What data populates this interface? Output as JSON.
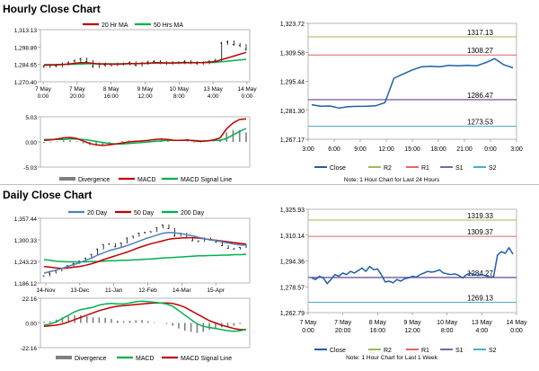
{
  "sections": {
    "hourly_title": "Hourly Close Chart",
    "daily_title": "Daily Close Chart"
  },
  "colors": {
    "ma_short": "#c00000",
    "ma_long": "#00b050",
    "close": "#1f5fa8",
    "close_dark": "#17375e",
    "r2": "#9bbb59",
    "r1": "#e06666",
    "s1": "#8064a2",
    "s2": "#4bacc6",
    "divergence": "#7f7f7f",
    "candle": "#000000",
    "ma20": "#4f81bd"
  },
  "chart_data": [
    {
      "id": "hourly_price",
      "type": "line",
      "title": "Hourly Close Chart",
      "legend": [
        "20 Hr MA",
        "50 Hrs MA"
      ],
      "y_ticks": [
        "1,313.13",
        "1,298.89",
        "1,284.65",
        "1,270.40"
      ],
      "ylim": [
        1270.4,
        1313.13
      ],
      "x_ticks": [
        [
          "7 May",
          "0:00"
        ],
        [
          "7 May",
          "20:00"
        ],
        [
          "8 May",
          "16:00"
        ],
        [
          "9 May",
          "12:00"
        ],
        [
          "10 May",
          "8:00"
        ],
        [
          "13 May",
          "4:00"
        ],
        [
          "14 May",
          "0:00"
        ]
      ],
      "series": [
        {
          "name": "Price",
          "values": [
            1283,
            1284,
            1283.5,
            1285,
            1286,
            1287.5,
            1289,
            1287,
            1283,
            1285,
            1284,
            1284.5,
            1285,
            1285,
            1286,
            1284,
            1285.5,
            1286.5,
            1287,
            1286,
            1285.5,
            1286,
            1286,
            1287,
            1286,
            1285.5,
            1286,
            1287,
            1288,
            1302,
            1303,
            1301,
            1300,
            1297
          ]
        },
        {
          "name": "20 Hr MA",
          "values": [
            1284,
            1284,
            1284.2,
            1284.5,
            1285,
            1285.5,
            1286,
            1286,
            1285.5,
            1285,
            1285,
            1284.8,
            1284.8,
            1285,
            1285.3,
            1285.2,
            1285.4,
            1285.6,
            1286,
            1286,
            1285.9,
            1285.9,
            1286,
            1286.2,
            1286.2,
            1286.1,
            1286.2,
            1286.5,
            1287,
            1288.5,
            1290,
            1291.5,
            1293,
            1294.5
          ]
        },
        {
          "name": "50 Hrs MA",
          "values": [
            1284.5,
            1284.5,
            1284.5,
            1284.6,
            1284.7,
            1284.8,
            1285,
            1285.1,
            1285.1,
            1285.1,
            1285.1,
            1285.1,
            1285.1,
            1285.2,
            1285.3,
            1285.3,
            1285.4,
            1285.5,
            1285.6,
            1285.6,
            1285.7,
            1285.7,
            1285.8,
            1285.9,
            1285.9,
            1286,
            1286,
            1286.1,
            1286.3,
            1286.8,
            1287.3,
            1287.8,
            1288.3,
            1288.8
          ]
        }
      ]
    },
    {
      "id": "hourly_macd",
      "type": "line",
      "y_ticks": [
        "5.03",
        "0.00",
        "-5.03"
      ],
      "ylim": [
        -5.03,
        5.03
      ],
      "legend": [
        "Divergence",
        "MACD",
        "MACD Signal Line"
      ],
      "series": [
        {
          "name": "MACD",
          "values": [
            0.3,
            0.4,
            0.6,
            0.8,
            0.9,
            0.7,
            0.2,
            -0.3,
            -0.6,
            -0.7,
            -0.6,
            -0.4,
            -0.2,
            0.0,
            0.1,
            0.2,
            0.3,
            0.5,
            0.6,
            0.5,
            0.3,
            0.3,
            0.4,
            0.2,
            0.1,
            0.2,
            0.4,
            0.8,
            2.6,
            3.8,
            4.5,
            4.6
          ]
        },
        {
          "name": "MACD Signal Line",
          "values": [
            0.5,
            0.5,
            0.5,
            0.5,
            0.6,
            0.6,
            0.5,
            0.3,
            0.1,
            -0.1,
            -0.3,
            -0.4,
            -0.4,
            -0.3,
            -0.2,
            -0.1,
            0.0,
            0.1,
            0.2,
            0.3,
            0.3,
            0.3,
            0.3,
            0.3,
            0.2,
            0.2,
            0.3,
            0.3,
            0.7,
            1.4,
            2.1,
            2.7
          ]
        },
        {
          "name": "Divergence",
          "values": [
            -0.2,
            -0.1,
            0.1,
            0.3,
            0.3,
            0.1,
            -0.3,
            -0.6,
            -0.7,
            -0.6,
            -0.3,
            0.0,
            0.2,
            0.3,
            0.3,
            0.3,
            0.3,
            0.4,
            0.4,
            0.2,
            0.0,
            0.0,
            0.1,
            -0.1,
            -0.1,
            0.0,
            0.1,
            0.5,
            1.9,
            2.4,
            2.4,
            1.9
          ]
        }
      ]
    },
    {
      "id": "hourly_close_24h",
      "type": "line",
      "y_ticks": [
        "1,323.72",
        "1,309.58",
        "1,295.44",
        "1,281.30",
        "1,267.17"
      ],
      "ylim": [
        1267.17,
        1323.72
      ],
      "x_ticks": [
        "3:00",
        "6:00",
        "9:00",
        "12:00",
        "15:00",
        "18:00",
        "21:00",
        "0:00",
        "3:00"
      ],
      "levels": [
        {
          "name": "R2",
          "value": 1317.13,
          "label": "1317.13"
        },
        {
          "name": "R1",
          "value": 1308.27,
          "label": "1308.27"
        },
        {
          "name": "S1",
          "value": 1286.47,
          "label": "1286.47"
        },
        {
          "name": "S2",
          "value": 1273.53,
          "label": "1273.53"
        }
      ],
      "series": [
        {
          "name": "Close",
          "values": [
            1284,
            1283.3,
            1283.4,
            1282.4,
            1283.1,
            1283.2,
            1283.3,
            1283.5,
            1285,
            1297,
            1299,
            1301,
            1302.5,
            1302.8,
            1302.5,
            1303.2,
            1303,
            1303.2,
            1303,
            1304.5,
            1306.5,
            1303.5,
            1302
          ]
        }
      ],
      "legend": [
        "Close",
        "R2",
        "R1",
        "S1",
        "S2"
      ],
      "note": "Note: 1 Hour Chart for Last 24 Hours"
    },
    {
      "id": "daily_price",
      "type": "line",
      "title": "Daily Close Chart",
      "legend": [
        "20 Day",
        "50 Day",
        "200 Day"
      ],
      "y_ticks": [
        "1,357.44",
        "1,300.33",
        "1,243.23",
        "1,186.12"
      ],
      "ylim": [
        1186.12,
        1357.44
      ],
      "x_ticks": [
        "14-Nov",
        "13-Dec",
        "11-Jan",
        "12-Feb",
        "14-Mar",
        "15-Apr"
      ],
      "series": [
        {
          "name": "Price",
          "values": [
            1205,
            1212,
            1218,
            1225,
            1232,
            1238,
            1244,
            1252,
            1262,
            1276,
            1288,
            1290,
            1282,
            1292,
            1305,
            1310,
            1318,
            1320,
            1322,
            1332,
            1340,
            1330,
            1310,
            1318,
            1305,
            1298,
            1296,
            1305,
            1300,
            1294,
            1285,
            1278,
            1276,
            1280,
            1287
          ]
        },
        {
          "name": "20 Day",
          "values": [
            1212,
            1216,
            1220,
            1225,
            1230,
            1235,
            1240,
            1246,
            1252,
            1260,
            1266,
            1272,
            1276,
            1280,
            1285,
            1291,
            1297,
            1303,
            1308,
            1313,
            1318,
            1320,
            1319,
            1317,
            1314,
            1311,
            1307,
            1303,
            1300,
            1298,
            1295,
            1292,
            1289,
            1287,
            1286
          ]
        },
        {
          "name": "50 Day",
          "values": [
            1230,
            1228,
            1226,
            1225,
            1226,
            1228,
            1230,
            1233,
            1237,
            1242,
            1248,
            1253,
            1258,
            1263,
            1268,
            1274,
            1280,
            1285,
            1290,
            1294,
            1298,
            1302,
            1304,
            1305,
            1306,
            1306,
            1305,
            1303,
            1301,
            1299,
            1297,
            1295,
            1293,
            1291,
            1289
          ]
        },
        {
          "name": "200 Day",
          "values": [
            1248,
            1246,
            1244,
            1243,
            1242,
            1242,
            1242,
            1242,
            1243,
            1243,
            1244,
            1245,
            1245,
            1246,
            1246,
            1247,
            1248,
            1249,
            1250,
            1251,
            1252,
            1253,
            1254,
            1255,
            1256,
            1257,
            1258,
            1258,
            1259,
            1259,
            1260,
            1260,
            1261,
            1261,
            1262
          ]
        }
      ]
    },
    {
      "id": "daily_macd",
      "type": "line",
      "y_ticks": [
        "22.16",
        "0.00",
        "-22.16"
      ],
      "ylim": [
        -22.16,
        22.16
      ],
      "legend": [
        "Divergence",
        "MACD",
        "MACD Signal Line"
      ],
      "series": [
        {
          "name": "MACD",
          "values": [
            -2,
            -1,
            1,
            4,
            7,
            10,
            12,
            13,
            14,
            16,
            17,
            17.5,
            17,
            17,
            18,
            19,
            19.5,
            19,
            18.5,
            18,
            17,
            15,
            11,
            7,
            3,
            -1,
            -3,
            -4,
            -5,
            -6,
            -7,
            -7.5,
            -7,
            -6
          ]
        },
        {
          "name": "MACD Signal Line",
          "values": [
            -3,
            -2.5,
            -2,
            -1,
            1,
            3,
            5,
            7,
            9,
            11,
            12.5,
            14,
            15,
            15.5,
            16,
            16.5,
            17,
            17.5,
            18,
            18,
            18,
            17.5,
            16,
            14,
            11,
            8,
            5,
            2,
            0,
            -2,
            -3.5,
            -5,
            -6,
            -6
          ]
        },
        {
          "name": "Divergence",
          "values": [
            1,
            1.5,
            3,
            5,
            6,
            7,
            7,
            6,
            5,
            5,
            4.5,
            3.5,
            2,
            1.5,
            2,
            2.5,
            2.5,
            1.5,
            0.5,
            0,
            -1,
            -2.5,
            -5,
            -7,
            -8,
            -9,
            -8,
            -6,
            -5,
            -4,
            -3.5,
            -2.5,
            -1,
            0
          ]
        }
      ]
    },
    {
      "id": "daily_close_week",
      "type": "line",
      "y_ticks": [
        "1,325.93",
        "1,310.14",
        "1,294.36",
        "1,278.57",
        "1,262.79"
      ],
      "ylim": [
        1262.79,
        1325.93
      ],
      "x_ticks": [
        [
          "7 May",
          "0:00"
        ],
        [
          "7 May",
          "20:00"
        ],
        [
          "8 May",
          "16:00"
        ],
        [
          "9 May",
          "12:00"
        ],
        [
          "10 May",
          "8:00"
        ],
        [
          "13 May",
          "4:00"
        ],
        [
          "14 May",
          "0:00"
        ]
      ],
      "levels": [
        {
          "name": "R2",
          "value": 1319.33,
          "label": "1319.33"
        },
        {
          "name": "R1",
          "value": 1309.37,
          "label": "1309.37"
        },
        {
          "name": "S1",
          "value": 1284.27,
          "label": "1284.27"
        },
        {
          "name": "S2",
          "value": 1269.13,
          "label": "1269.13"
        }
      ],
      "series": [
        {
          "name": "Close",
          "values": [
            1284,
            1283,
            1285,
            1284,
            1280.5,
            1283,
            1286,
            1285,
            1287,
            1286,
            1288,
            1287,
            1288.5,
            1290,
            1288,
            1291,
            1289,
            1289.5,
            1286,
            1281.5,
            1282,
            1281,
            1283,
            1282,
            1283.5,
            1284,
            1285,
            1284.5,
            1286,
            1287,
            1288,
            1287.5,
            1288,
            1289,
            1287,
            1286.5,
            1286,
            1286.5,
            1285.5,
            1284,
            1286,
            1287,
            1286,
            1285.5,
            1286,
            1285.3,
            1284.5,
            1284.8,
            1298,
            1300,
            1299,
            1302.5,
            1298.5
          ]
        }
      ],
      "legend": [
        "Close",
        "R2",
        "R1",
        "S1",
        "S2"
      ],
      "note": "Note: 1 Hour Chart for Last 1 Week"
    }
  ]
}
